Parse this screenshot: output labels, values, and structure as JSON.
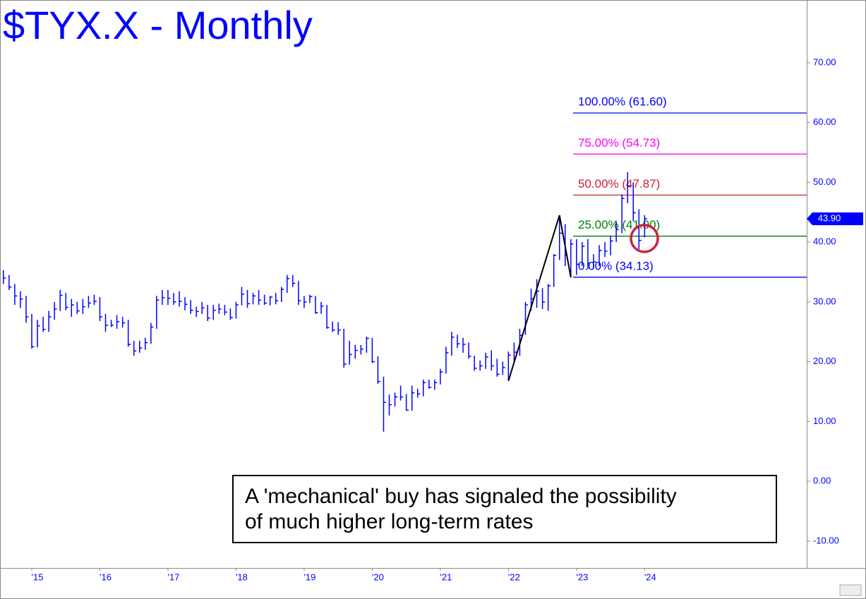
{
  "chart_data": {
    "type": "ohlc",
    "title": "$TYX.X - Monthly",
    "color": "#0000ff",
    "categories": [
      null,
      null,
      null,
      null,
      null,
      "'15",
      null,
      null,
      null,
      null,
      null,
      null,
      null,
      null,
      null,
      null,
      null,
      "'16",
      null,
      null,
      null,
      null,
      null,
      null,
      null,
      null,
      null,
      null,
      null,
      "'17",
      null,
      null,
      null,
      null,
      null,
      null,
      null,
      null,
      null,
      null,
      null,
      "'18",
      null,
      null,
      null,
      null,
      null,
      null,
      null,
      null,
      null,
      null,
      null,
      "'19",
      null,
      null,
      null,
      null,
      null,
      null,
      null,
      null,
      null,
      null,
      null,
      "'20",
      null,
      null,
      null,
      null,
      null,
      null,
      null,
      null,
      null,
      null,
      null,
      "'21",
      null,
      null,
      null,
      null,
      null,
      null,
      null,
      null,
      null,
      null,
      null,
      "'22",
      null,
      null,
      null,
      null,
      null,
      null,
      null,
      null,
      null,
      null,
      null,
      "'23",
      null,
      null,
      null,
      null,
      null,
      null,
      null,
      null,
      null,
      null,
      null,
      "'24"
    ],
    "high": [
      35.3,
      34.5,
      33.0,
      31.8,
      31.0,
      28.0,
      27.0,
      27.5,
      28.5,
      30.0,
      32.0,
      31.5,
      30.5,
      30.0,
      30.5,
      31.0,
      31.2,
      30.8,
      28.0,
      27.0,
      27.8,
      27.5,
      27.0,
      23.5,
      23.5,
      24.0,
      26.5,
      31.0,
      32.0,
      32.0,
      31.5,
      31.8,
      30.8,
      30.3,
      29.2,
      30.0,
      29.5,
      29.5,
      29.7,
      29.5,
      28.9,
      30.0,
      32.5,
      32.0,
      31.5,
      32.0,
      31.2,
      31.0,
      31.5,
      32.5,
      34.5,
      34.5,
      33.5,
      31.0,
      31.2,
      31.0,
      30.0,
      29.5,
      26.7,
      26.6,
      25.5,
      23.5,
      22.8,
      22.8,
      24.2,
      24.0,
      20.9,
      17.5,
      14.5,
      14.8,
      16.0,
      14.6,
      16.0,
      15.5,
      17.0,
      17.0,
      17.0,
      18.8,
      22.5,
      25.0,
      24.5,
      24.0,
      23.2,
      21.0,
      20.2,
      21.5,
      21.9,
      20.5,
      20.0,
      21.7,
      23.2,
      25.5,
      30.0,
      32.2,
      33.8,
      32.3,
      33.0,
      38.0,
      44.5,
      43.0,
      40.5,
      40.5,
      40.0,
      40.5,
      38.0,
      39.5,
      40.0,
      41.0,
      43.5,
      48.0,
      51.7,
      50.0,
      45.5,
      44.5
    ],
    "low": [
      33.0,
      32.0,
      29.5,
      29.0,
      26.5,
      22.2,
      22.4,
      25.0,
      25.0,
      27.0,
      28.5,
      28.6,
      27.5,
      28.0,
      28.0,
      29.0,
      29.5,
      26.8,
      25.0,
      25.8,
      25.5,
      25.7,
      22.5,
      21.0,
      21.5,
      22.0,
      23.0,
      25.5,
      29.5,
      29.5,
      29.5,
      29.2,
      28.6,
      28.0,
      27.5,
      28.0,
      26.8,
      27.0,
      28.0,
      27.8,
      27.0,
      27.2,
      29.4,
      29.0,
      29.6,
      29.5,
      29.5,
      29.4,
      29.6,
      30.0,
      31.5,
      32.5,
      29.5,
      29.0,
      29.8,
      28.0,
      28.0,
      25.5,
      25.0,
      24.5,
      19.0,
      19.5,
      20.5,
      21.2,
      21.5,
      19.8,
      16.3,
      8.3,
      11.0,
      12.5,
      13.5,
      11.8,
      11.8,
      14.0,
      14.2,
      15.5,
      15.3,
      16.2,
      18.0,
      21.0,
      22.3,
      21.5,
      20.5,
      18.5,
      18.5,
      18.8,
      18.5,
      17.5,
      17.8,
      16.8,
      19.8,
      21.0,
      24.5,
      28.5,
      29.0,
      28.8,
      28.5,
      32.5,
      37.0,
      36.0,
      34.1,
      34.5,
      36.0,
      35.5,
      35.5,
      36.0,
      37.5,
      37.8,
      40.0,
      41.5,
      46.5,
      43.5,
      38.8,
      40.8
    ],
    "close": [
      34.0,
      32.5,
      31.0,
      30.5,
      27.5,
      22.5,
      26.0,
      25.4,
      27.5,
      28.8,
      31.1,
      29.1,
      29.5,
      28.5,
      29.2,
      29.8,
      30.1,
      27.5,
      26.1,
      26.1,
      26.7,
      26.5,
      22.9,
      21.8,
      22.3,
      23.2,
      25.8,
      30.3,
      30.7,
      30.6,
      30.0,
      30.1,
      29.6,
      28.6,
      28.4,
      29.0,
      27.3,
      28.6,
      28.8,
      28.3,
      27.4,
      29.5,
      31.3,
      29.7,
      31.0,
      30.3,
      29.8,
      30.8,
      30.2,
      32.1,
      33.9,
      33.1,
      30.2,
      30.0,
      30.9,
      28.2,
      29.3,
      25.7,
      25.3,
      25.3,
      19.6,
      21.2,
      21.9,
      22.1,
      23.9,
      20.0,
      16.7,
      13.2,
      12.8,
      14.1,
      14.1,
      11.9,
      14.8,
      14.6,
      16.5,
      15.7,
      16.5,
      18.3,
      21.5,
      24.1,
      23.0,
      22.9,
      20.9,
      18.9,
      19.3,
      20.8,
      19.3,
      17.9,
      19.0,
      21.1,
      21.6,
      24.4,
      29.5,
      30.5,
      31.8,
      30.0,
      32.7,
      37.8,
      41.5,
      37.8,
      39.7,
      36.3,
      39.3,
      36.5,
      36.7,
      38.6,
      38.5,
      40.2,
      42.1,
      47.3,
      49.3,
      44.9,
      40.3,
      43.9
    ],
    "last_price_label": "43.90",
    "ylim": [
      -14.5,
      80.5
    ],
    "yticks": [
      {
        "value": -10,
        "label": "-10.00"
      },
      {
        "value": 0,
        "label": "0.00"
      },
      {
        "value": 10,
        "label": "10.00"
      },
      {
        "value": 20,
        "label": "20.00"
      },
      {
        "value": 30,
        "label": "30.00"
      },
      {
        "value": 40,
        "label": "40.00"
      },
      {
        "value": 50,
        "label": "50.00"
      },
      {
        "value": 60,
        "label": "60.00"
      },
      {
        "value": 70,
        "label": "70.00"
      }
    ],
    "fib_levels": [
      {
        "label": "100.00% (61.60)",
        "value": 61.6,
        "color": "#0000ff"
      },
      {
        "label": "75.00% (54.73)",
        "value": 54.73,
        "color": "#ff00ff"
      },
      {
        "label": "50.00% (47.87)",
        "value": 47.87,
        "color": "#cc2233"
      },
      {
        "label": "25.00% (41.00)",
        "value": 41.0,
        "color": "#008000"
      },
      {
        "label": "0.00% (34.13)",
        "value": 34.13,
        "color": "#0000ff"
      }
    ],
    "annotation": [
      "A 'mechanical' buy has signaled the possibility",
      "of much higher long-term rates"
    ]
  }
}
